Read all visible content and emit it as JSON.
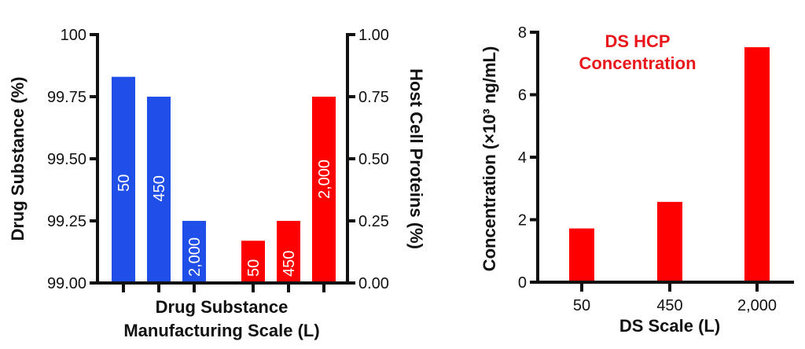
{
  "chart_data": [
    {
      "type": "bar",
      "xlabel": [
        "Drug Substance",
        "Manufacturing Scale (L)"
      ],
      "ylabel_left": "Drug Substance (%)",
      "ylabel_right": "Host Cell Proteins (%)",
      "ylim_left": [
        99.0,
        100
      ],
      "ylim_right": [
        0.0,
        1.0
      ],
      "yticks_left": [
        "99.00",
        "99.25",
        "99.50",
        "99.75",
        "100"
      ],
      "yticks_right": [
        "0.00",
        "0.25",
        "0.50",
        "0.75",
        "1.00"
      ],
      "grid": false,
      "series": [
        {
          "axis": "left",
          "color": "#1f4fe8",
          "categories": [
            "50",
            "450",
            "2,000"
          ],
          "values": [
            99.83,
            99.75,
            99.25
          ]
        },
        {
          "axis": "right",
          "color": "#ff0000",
          "categories": [
            "50",
            "450",
            "2,000"
          ],
          "values": [
            0.17,
            0.25,
            0.75
          ]
        }
      ]
    },
    {
      "type": "bar",
      "title": [
        "DS HCP",
        "Concentration"
      ],
      "title_color": "#e8161b",
      "xlabel": "DS Scale (L)",
      "ylabel": "Concentration (×10³ ng/mL)",
      "categories": [
        "50",
        "450",
        "2,000"
      ],
      "values": [
        1.72,
        2.57,
        7.52
      ],
      "ylim": [
        0,
        8
      ],
      "yticks": [
        "0",
        "2",
        "4",
        "6",
        "8"
      ],
      "color": "#ff0000",
      "grid": false
    }
  ]
}
